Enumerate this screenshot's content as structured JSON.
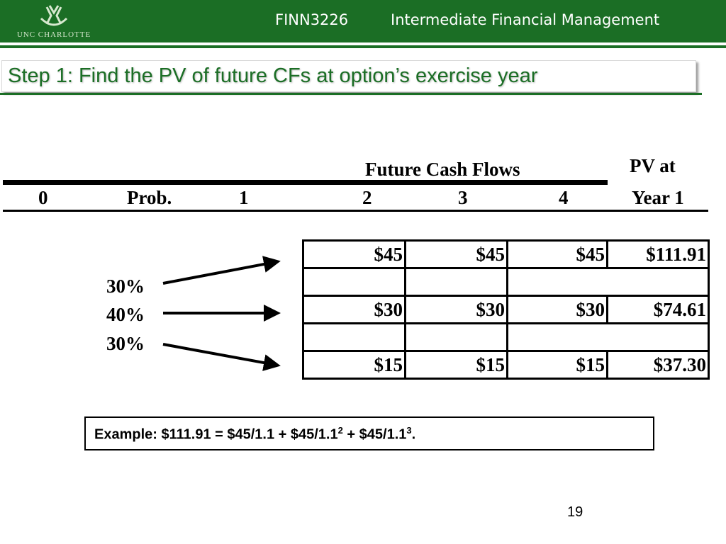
{
  "header": {
    "logo_text": "UNC CHARLOTTE",
    "course": "FINN3226",
    "course_title": "Intermediate Financial Management"
  },
  "slide": {
    "title": "Step 1: Find the PV of future CFs at option’s exercise year",
    "page_number": "19"
  },
  "timeline": {
    "future_cash_flows_label": "Future Cash Flows",
    "pv_label_line1": "PV at",
    "pv_label_line2": "Year 1",
    "columns": [
      "0",
      "Prob.",
      "1",
      "2",
      "3",
      "4"
    ]
  },
  "probabilities": [
    "30%",
    "40%",
    "30%"
  ],
  "table": {
    "rows": [
      {
        "cells": [
          "$45",
          "$45",
          "$45",
          "$111.91"
        ]
      },
      {
        "cells": [
          "",
          "",
          "",
          ""
        ]
      },
      {
        "cells": [
          "$30",
          "$30",
          "$30",
          "$74.61"
        ]
      },
      {
        "cells": [
          "",
          "",
          "",
          ""
        ]
      },
      {
        "cells": [
          "$15",
          "$15",
          "$15",
          "$37.30"
        ]
      }
    ]
  },
  "example": {
    "prefix": "Example: $111.91 = $45/1.1 + $45/1.1",
    "exp1": "2",
    "mid": " + $45/1.1",
    "exp2": "3",
    "suffix": "."
  },
  "colors": {
    "brand_green": "#1b6e25"
  }
}
